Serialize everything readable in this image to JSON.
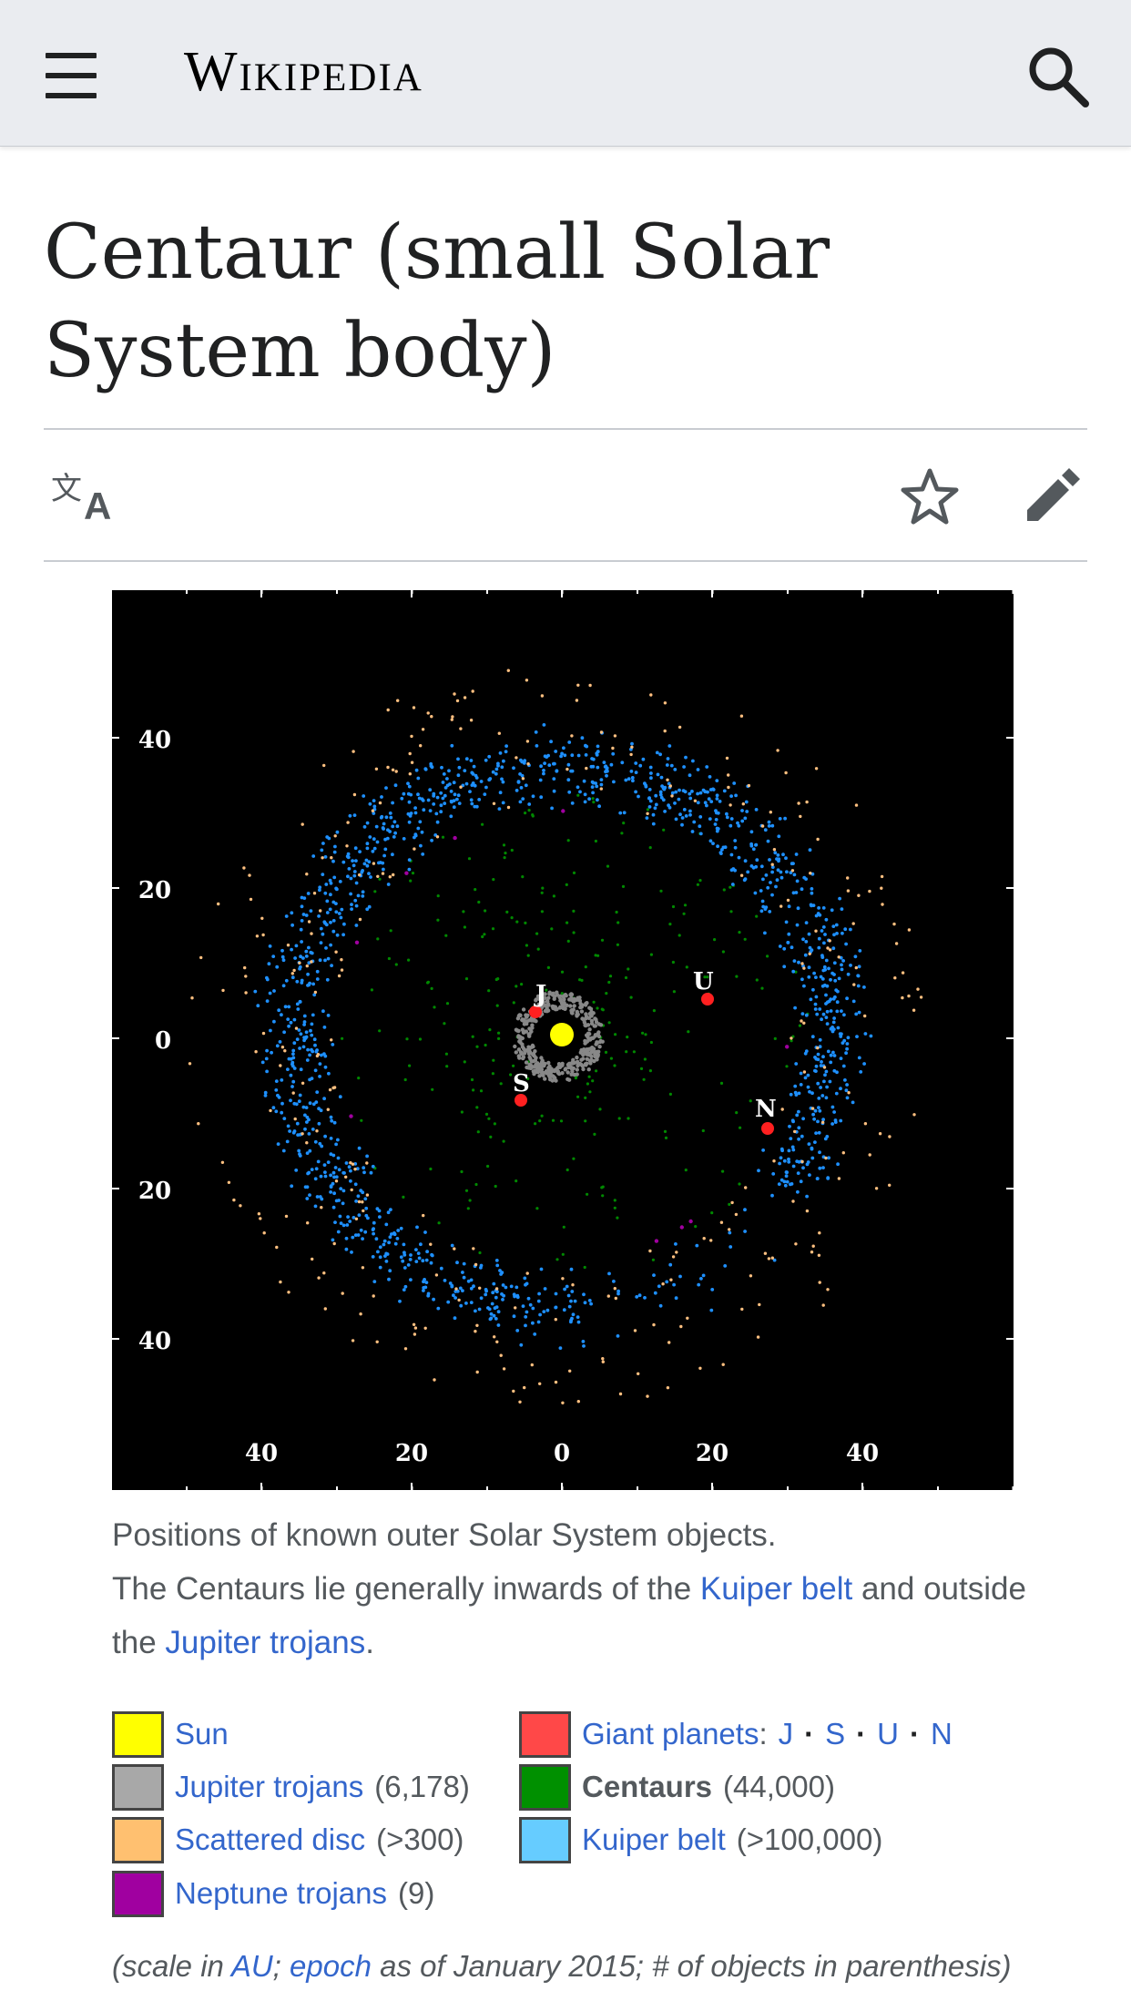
{
  "header": {
    "logo_text": "Wikipedia",
    "menu_icon": "hamburger-menu-icon",
    "search_icon": "search-icon",
    "background": "#eaecf0"
  },
  "page": {
    "title": "Centaur (small Solar System body)"
  },
  "toolbar": {
    "language_icon": "language-icon",
    "watch_icon": "star-icon",
    "edit_icon": "pencil-icon"
  },
  "figure": {
    "y_ticks": [
      "40",
      "20",
      "0",
      "20",
      "40"
    ],
    "x_ticks": [
      "40",
      "20",
      "0",
      "20",
      "40"
    ],
    "planet_labels": [
      "J",
      "S",
      "U",
      "N"
    ],
    "colors": {
      "background": "#000000",
      "sun": "#ffff00",
      "jupiter_trojans": "#888888",
      "scattered_disc": "#ffc080",
      "neptune_trojans": "#a000a0",
      "giant_planets": "#ff2020",
      "centaurs": "#008800",
      "kuiper_belt": "#1e90ff"
    }
  },
  "caption": {
    "line1": "Positions of known outer Solar System objects.",
    "line2_prefix": "The Centaurs lie generally inwards of the ",
    "kuiper_link": "Kuiper belt",
    "line2_mid": " and outside the ",
    "jupiter_link": "Jupiter trojans",
    "line2_end": "."
  },
  "legend": {
    "sun": {
      "label": "Sun",
      "color": "#ffff00"
    },
    "jupiter_trojans": {
      "label": "Jupiter trojans",
      "count": "(6,178)",
      "color": "#a8a8a8"
    },
    "scattered_disc": {
      "label": "Scattered disc",
      "count": "(>300)",
      "color": "#ffc070"
    },
    "neptune_trojans": {
      "label": "Neptune trojans",
      "count": "(9)",
      "color": "#a000a0"
    },
    "giant_planets": {
      "label": "Giant planets",
      "colon": ":",
      "j": "J",
      "s": "S",
      "u": "U",
      "n": "N",
      "dot": "·",
      "color": "#ff4848"
    },
    "centaurs": {
      "label": "Centaurs",
      "count": "(44,000)",
      "color": "#009000"
    },
    "kuiper_belt": {
      "label": "Kuiper belt",
      "count": "(>100,000)",
      "color": "#66ccff"
    }
  },
  "footnote": {
    "open": "(scale in ",
    "au_link": "AU",
    "semi": "; ",
    "epoch_link": "epoch",
    "rest": " as of January 2015; # of objects in parenthesis)"
  }
}
